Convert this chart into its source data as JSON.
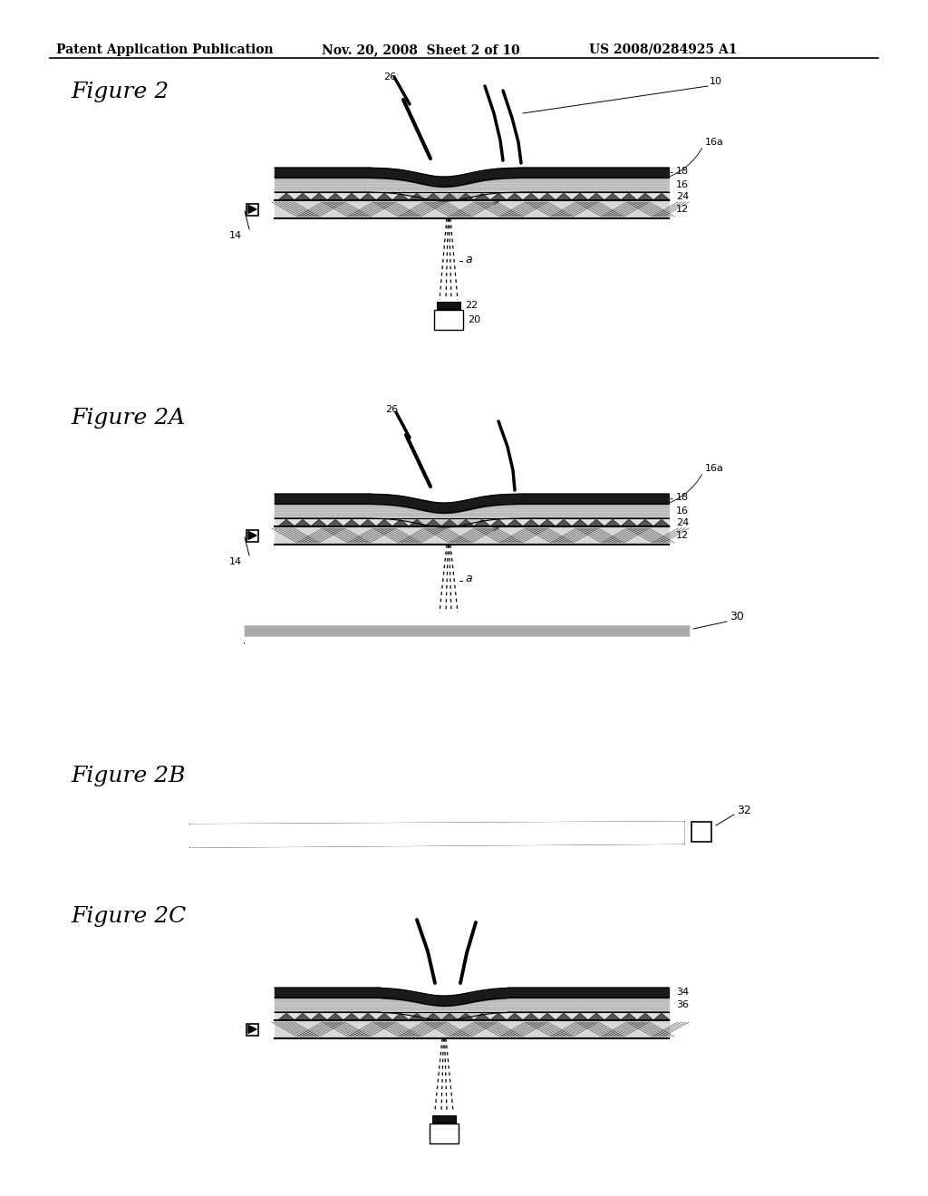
{
  "bg_color": "#ffffff",
  "header_text": "Patent Application Publication",
  "header_date": "Nov. 20, 2008  Sheet 2 of 10",
  "header_patent": "US 2008/0284925 A1",
  "fig2_label": "Figure 2",
  "fig2a_label": "Figure 2A",
  "fig2b_label": "Figure 2B",
  "fig2c_label": "Figure 2C"
}
